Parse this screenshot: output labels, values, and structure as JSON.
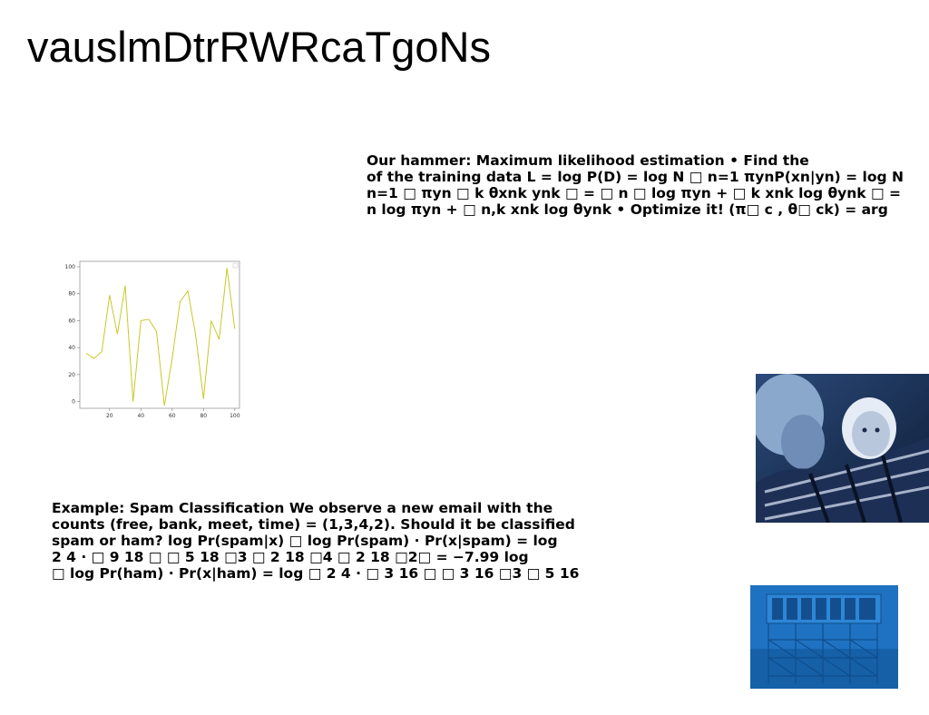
{
  "slide": {
    "title": "vauslmDtrRWRcaTgoNs"
  },
  "text_a": {
    "lines": [
      "Our hammer: Maximum likelihood estimation • Find the",
      "of the training data L = log P(D) = log N □ n=1 πynP(xn|yn) = log N",
      "n=1 □ πyn □ k θxnk ynk □ = □ n □ log πyn + □ k xnk log θynk □ =",
      "n log πyn + □ n,k xnk log θynk • Optimize it! (π□ c , θ□ ck) = arg"
    ]
  },
  "text_b": {
    "lines": [
      "Example: Spam Classification We observe a new email with the",
      "counts (free, bank, meet, time) = (1,3,4,2). Should it be classified",
      "spam or ham? log Pr(spam|x) □ log Pr(spam) · Pr(x|spam) = log",
      "2 4 · □ 9 18 □ □ 5 18 □3 □ 2 18 □4 □ 2 18 □2□ = −7.99 log",
      "□ log Pr(ham) · Pr(x|ham) = log □ 2 4 · □ 3 16 □ □ 3 16 □3 □ 5 16"
    ]
  },
  "chart_data": {
    "type": "line",
    "x": [
      5,
      10,
      15,
      20,
      25,
      30,
      35,
      40,
      45,
      50,
      55,
      60,
      65,
      70,
      75,
      80,
      85,
      90,
      95,
      100
    ],
    "values": [
      36,
      32,
      37,
      79,
      50,
      86,
      0,
      60,
      61,
      52,
      -3,
      32,
      74,
      82,
      49,
      2,
      60,
      46,
      99,
      54
    ],
    "xticks": [
      20,
      40,
      60,
      80,
      100
    ],
    "yticks": [
      0,
      20,
      40,
      60,
      80,
      100
    ],
    "xlim": [
      1,
      103
    ],
    "ylim": [
      -5,
      104
    ],
    "line_color": "#c8c82a",
    "grid": false
  },
  "images": {
    "photo_a": "grandmother-and-baby-photo",
    "photo_b": "silvercup-rooftop-sign-photo"
  }
}
